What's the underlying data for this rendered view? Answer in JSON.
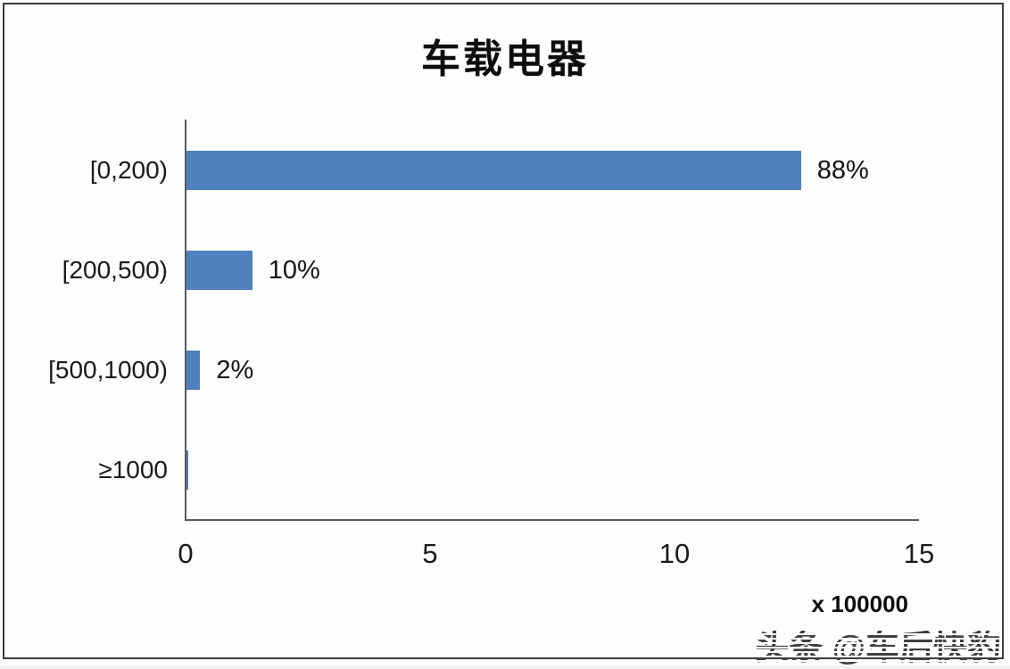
{
  "chart_data": {
    "type": "bar",
    "orientation": "horizontal",
    "title": "车载电器",
    "categories": [
      "[0,200)",
      "[200,500)",
      "[500,1000)",
      "≥1000"
    ],
    "values": [
      12.6,
      1.35,
      0.28,
      0.04
    ],
    "bar_labels": [
      "88%",
      "10%",
      "2%",
      ""
    ],
    "xlim": [
      0,
      15
    ],
    "xticks": [
      "0",
      "5",
      "10",
      "15"
    ],
    "x_unit_label": "x 100000",
    "bar_color": "#4e81bd",
    "axis_color": "#595959",
    "grid": false,
    "legend": "none"
  },
  "watermark": {
    "text": "头条 @车后快豹"
  }
}
